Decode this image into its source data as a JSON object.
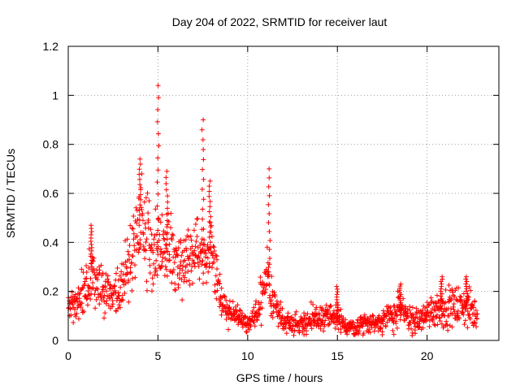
{
  "chart_data": {
    "type": "scatter",
    "title": "Day 204 of 2022, SRMTID for receiver laut",
    "xlabel": "GPS time / hours",
    "ylabel": "SRMTID / TECUs",
    "xlim": [
      0,
      24
    ],
    "ylim": [
      0,
      1.2
    ],
    "x_ticks": [
      0,
      5,
      10,
      15,
      20
    ],
    "x_tick_labels": [
      "0",
      "5",
      "10",
      "15",
      "20"
    ],
    "y_ticks": [
      0,
      0.2,
      0.4,
      0.6,
      0.8,
      1,
      1.2
    ],
    "y_tick_labels": [
      "0",
      "0.2",
      "0.4",
      "0.6",
      "0.8",
      "1",
      "1.2"
    ],
    "grid": true,
    "marker": "+",
    "color": "#ff0000",
    "envelope": {
      "description": "approximate typical level / spread and peak maxima of the scattered SRMTID points (read from the figure)",
      "x": [
        0,
        0.5,
        1,
        1.3,
        1.6,
        2,
        2.5,
        3,
        3.3,
        3.6,
        4,
        4.3,
        4.6,
        5,
        5.3,
        5.6,
        6,
        6.3,
        6.6,
        7,
        7.3,
        7.6,
        7.9,
        8.2,
        8.5,
        9,
        9.5,
        10,
        10.4,
        10.8,
        11.1,
        11.5,
        12,
        12.5,
        13,
        13.5,
        14,
        14.5,
        15,
        15.5,
        16,
        16.5,
        17,
        17.5,
        18,
        18.5,
        19,
        19.5,
        20,
        20.5,
        21,
        21.5,
        22,
        22.5,
        22.8
      ],
      "level": [
        0.13,
        0.15,
        0.22,
        0.3,
        0.22,
        0.2,
        0.2,
        0.22,
        0.3,
        0.4,
        0.47,
        0.43,
        0.38,
        0.4,
        0.35,
        0.37,
        0.33,
        0.3,
        0.32,
        0.38,
        0.4,
        0.36,
        0.38,
        0.32,
        0.15,
        0.12,
        0.1,
        0.06,
        0.1,
        0.16,
        0.25,
        0.15,
        0.08,
        0.07,
        0.07,
        0.08,
        0.09,
        0.1,
        0.08,
        0.06,
        0.05,
        0.07,
        0.07,
        0.08,
        0.1,
        0.12,
        0.09,
        0.08,
        0.11,
        0.13,
        0.13,
        0.14,
        0.14,
        0.12,
        0.1
      ],
      "spread": [
        0.04,
        0.05,
        0.07,
        0.08,
        0.07,
        0.06,
        0.06,
        0.07,
        0.09,
        0.1,
        0.12,
        0.12,
        0.12,
        0.12,
        0.1,
        0.1,
        0.09,
        0.09,
        0.08,
        0.08,
        0.08,
        0.07,
        0.08,
        0.08,
        0.05,
        0.04,
        0.03,
        0.02,
        0.04,
        0.06,
        0.08,
        0.05,
        0.03,
        0.03,
        0.03,
        0.04,
        0.04,
        0.04,
        0.04,
        0.03,
        0.02,
        0.03,
        0.03,
        0.03,
        0.04,
        0.05,
        0.04,
        0.03,
        0.04,
        0.05,
        0.05,
        0.05,
        0.05,
        0.05,
        0.04
      ],
      "peaks": [
        {
          "x": 1.3,
          "y": 0.47
        },
        {
          "x": 4.0,
          "y": 0.74
        },
        {
          "x": 5.0,
          "y": 1.04
        },
        {
          "x": 5.5,
          "y": 0.69
        },
        {
          "x": 7.5,
          "y": 0.9
        },
        {
          "x": 7.9,
          "y": 0.65
        },
        {
          "x": 11.2,
          "y": 0.7
        },
        {
          "x": 15.0,
          "y": 0.22
        },
        {
          "x": 18.5,
          "y": 0.23
        },
        {
          "x": 20.8,
          "y": 0.26
        },
        {
          "x": 22.2,
          "y": 0.26
        }
      ]
    }
  }
}
